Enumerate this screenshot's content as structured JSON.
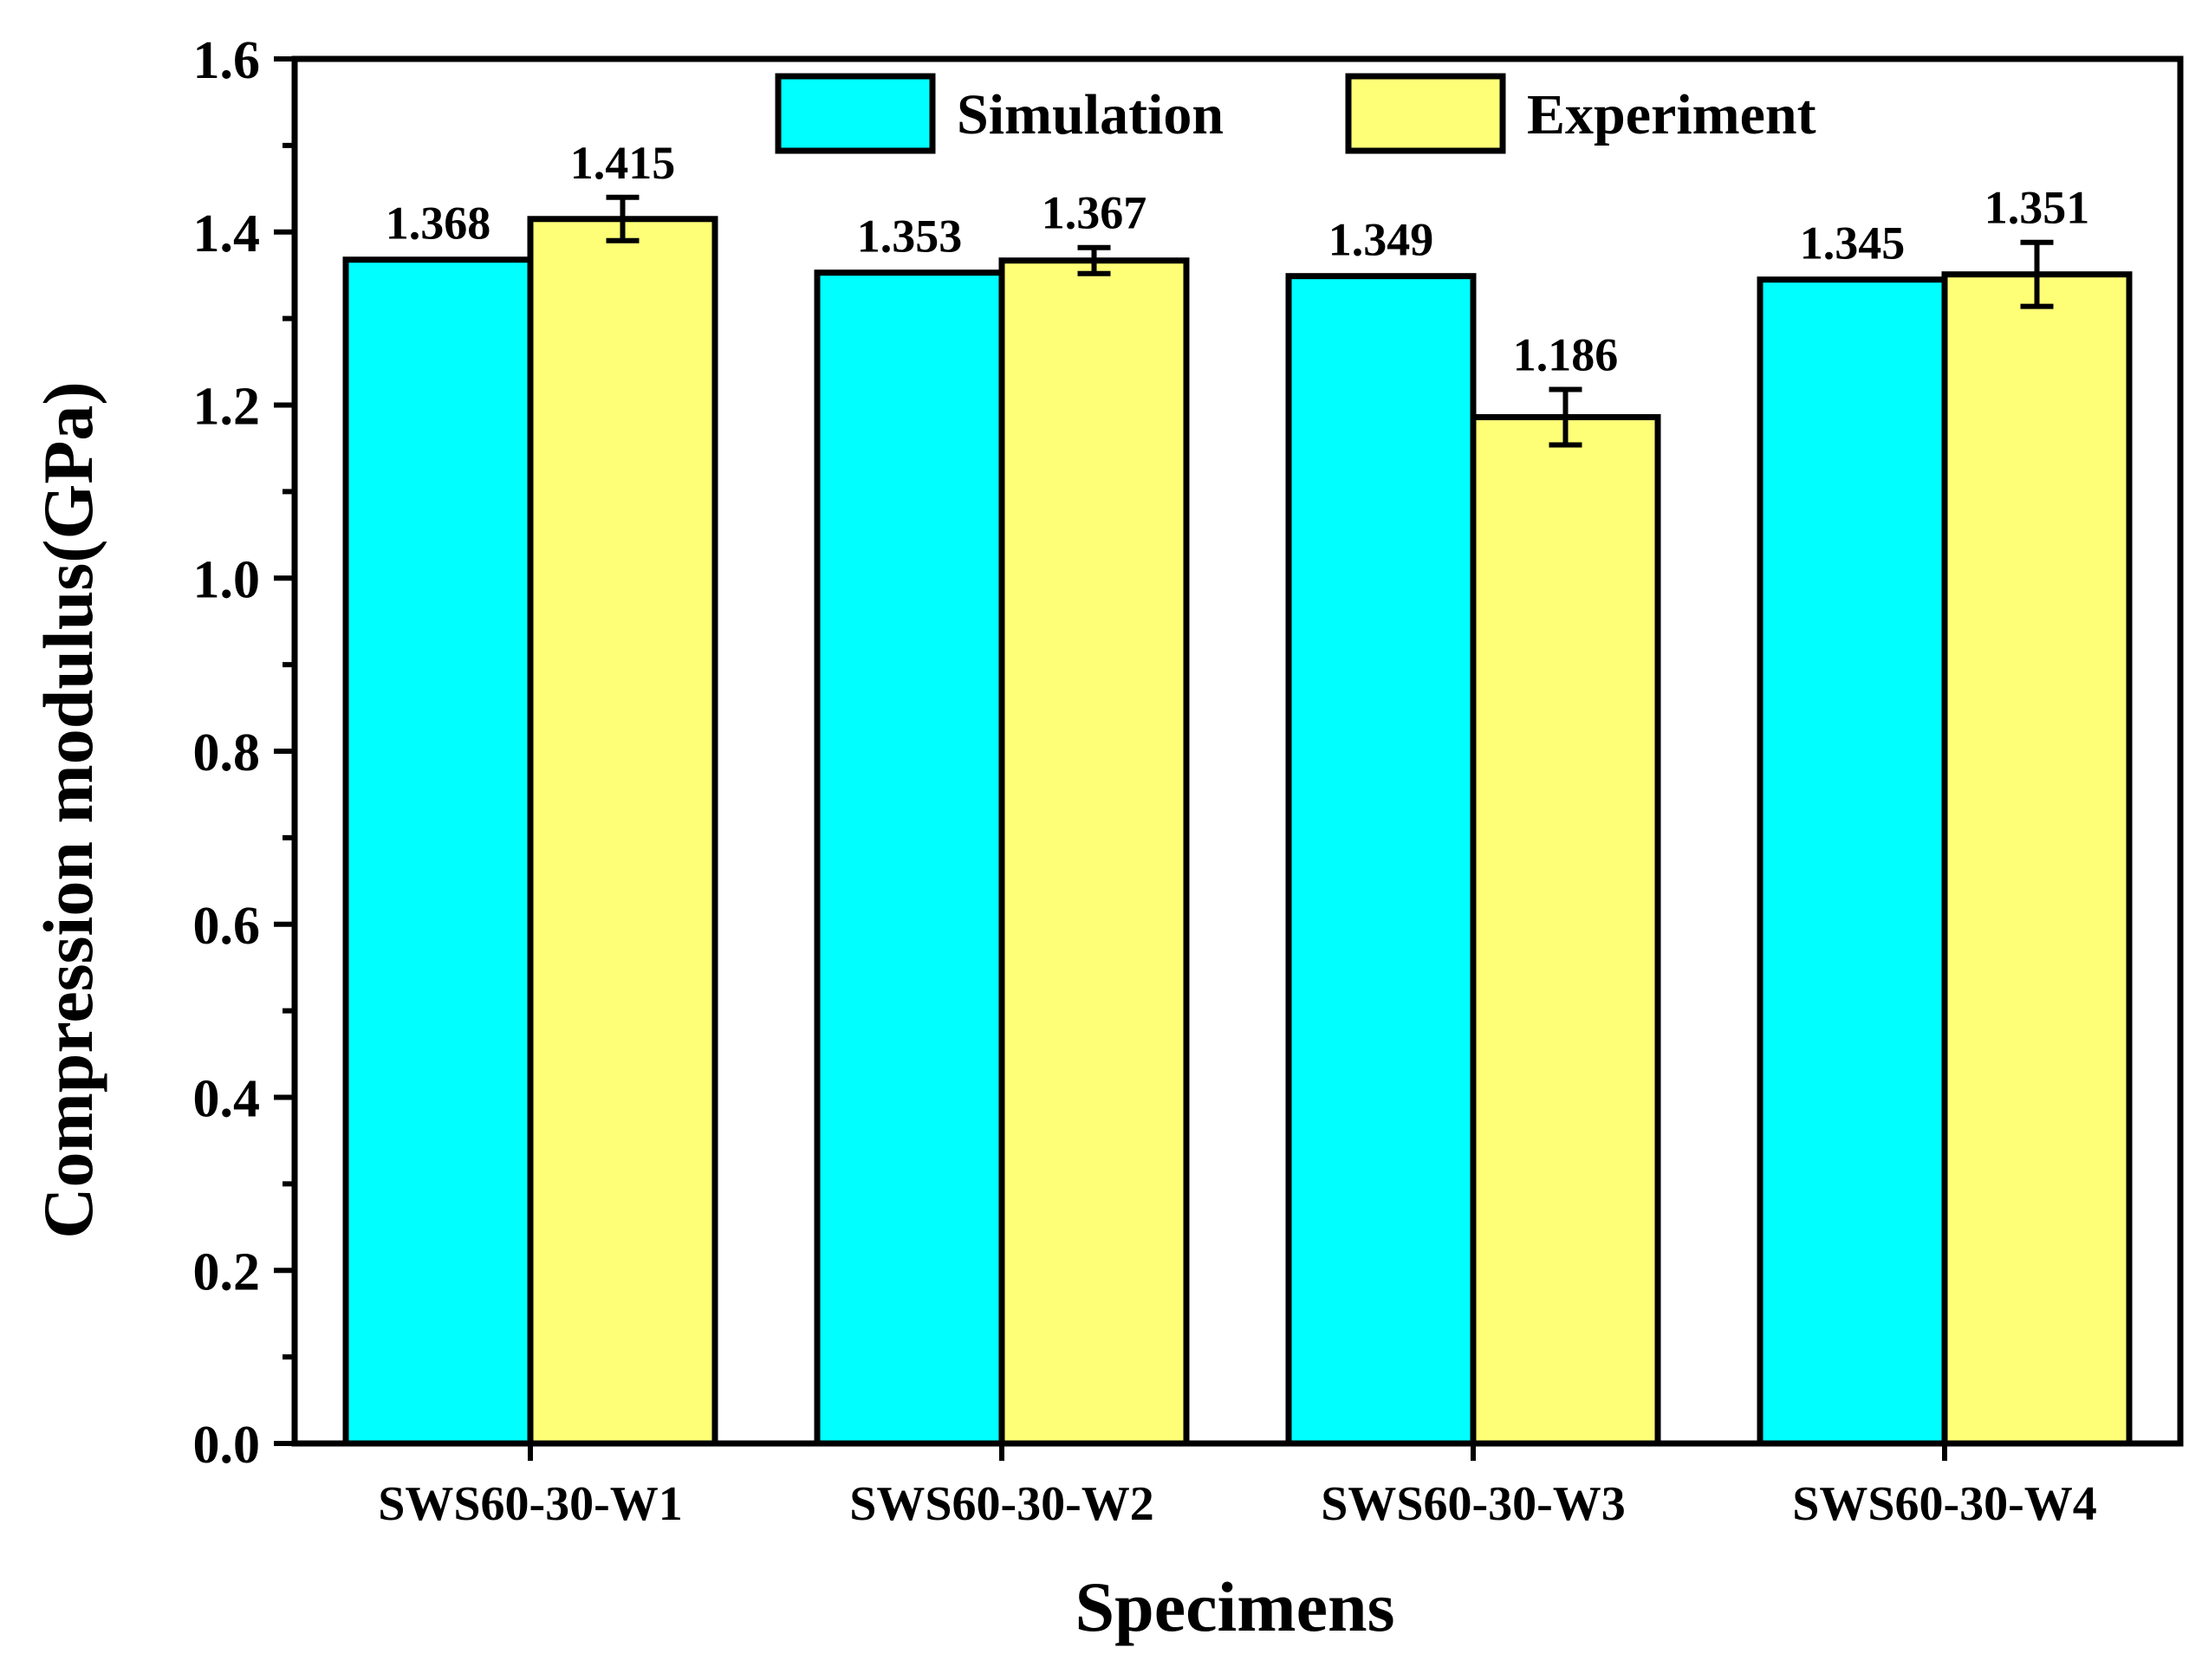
{
  "chart_data": {
    "type": "bar",
    "title": "",
    "xlabel": "Specimens",
    "ylabel": "Compression modulus(GPa)",
    "ylim": [
      0,
      1.6
    ],
    "yticks": [
      "0.0",
      "0.2",
      "0.4",
      "0.6",
      "0.8",
      "1.0",
      "1.2",
      "1.4",
      "1.6"
    ],
    "categories": [
      "SWS60-30-W1",
      "SWS60-30-W2",
      "SWS60-30-W3",
      "SWS60-30-W4"
    ],
    "legend_position": "top-center",
    "series": [
      {
        "name": "Simulation",
        "color": "#00FFFF",
        "values": [
          1.368,
          1.353,
          1.349,
          1.345
        ],
        "labels": [
          "1.368",
          "1.353",
          "1.349",
          "1.345"
        ],
        "errors": [
          0,
          0,
          0,
          0
        ]
      },
      {
        "name": "Experiment",
        "color": "#FFFF77",
        "values": [
          1.415,
          1.367,
          1.186,
          1.351
        ],
        "labels": [
          "1.415",
          "1.367",
          "1.186",
          "1.351"
        ],
        "errors": [
          0.025,
          0.015,
          0.032,
          0.037
        ]
      }
    ]
  }
}
